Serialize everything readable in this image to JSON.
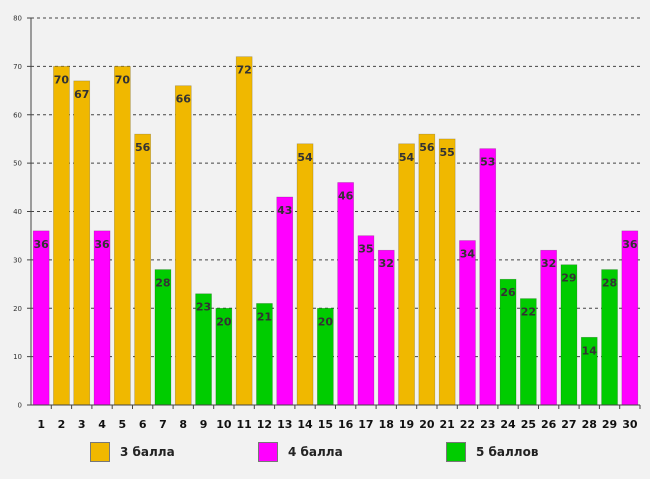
{
  "chart_data": {
    "type": "bar",
    "title": "",
    "xlabel": "",
    "ylabel": "",
    "ylim": [
      0,
      80
    ],
    "yticks": [
      0,
      10,
      20,
      30,
      40,
      50,
      60,
      70,
      80
    ],
    "grid": true,
    "categories": [
      "1",
      "2",
      "3",
      "4",
      "5",
      "6",
      "7",
      "8",
      "9",
      "10",
      "11",
      "12",
      "13",
      "14",
      "15",
      "16",
      "17",
      "18",
      "19",
      "20",
      "21",
      "22",
      "23",
      "24",
      "25",
      "26",
      "27",
      "28",
      "29",
      "30"
    ],
    "values": [
      36,
      70,
      67,
      36,
      70,
      56,
      28,
      66,
      23,
      20,
      72,
      21,
      43,
      54,
      20,
      46,
      35,
      32,
      54,
      56,
      55,
      34,
      53,
      26,
      22,
      32,
      29,
      14,
      28,
      36
    ],
    "groups": [
      "4",
      "3",
      "3",
      "4",
      "3",
      "3",
      "5",
      "3",
      "5",
      "5",
      "3",
      "5",
      "4",
      "3",
      "5",
      "4",
      "4",
      "4",
      "3",
      "3",
      "3",
      "4",
      "4",
      "5",
      "5",
      "4",
      "5",
      "5",
      "5",
      "4"
    ],
    "legend": [
      {
        "key": "3",
        "label": "3 балла",
        "color": "#f0b800"
      },
      {
        "key": "4",
        "label": "4 балла",
        "color": "#ff00ff"
      },
      {
        "key": "5",
        "label": "5 баллов",
        "color": "#00cc00"
      }
    ]
  }
}
